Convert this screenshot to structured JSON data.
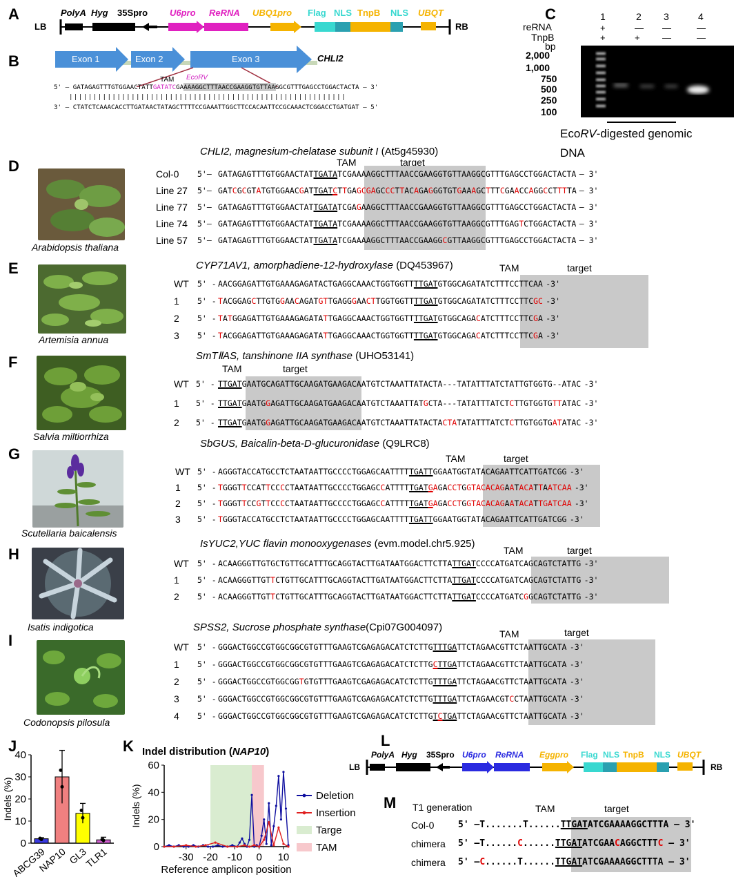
{
  "panel_letters": [
    "A",
    "B",
    "C",
    "D",
    "E",
    "F",
    "G",
    "H",
    "I",
    "J",
    "K",
    "L",
    "M"
  ],
  "panelA": {
    "lb": "LB",
    "rb": "RB",
    "labels": [
      "PolyA",
      "Hyg",
      "35Spro",
      "U6pro",
      "ReRNA",
      "UBQ1pro",
      "Flag",
      "NLS",
      "TnpB",
      "NLS",
      "UBQT"
    ],
    "colors": {
      "magenta": "#e020c0",
      "orange": "#f5b300",
      "cyan": "#38d8d0",
      "teal": "#2aa0b0",
      "black": "#000000"
    }
  },
  "panelB": {
    "exons": [
      "Exon 1",
      "Exon 2",
      "Exon 3"
    ],
    "gene": "CHLI2",
    "tam": "TAM",
    "ecorv": "EcoRV",
    "top_prefix": "5'",
    "top_seq_a": "– GATAGAGTTTGTGGAACTATT",
    "top_seq_b": "GATATC",
    "top_seq_c": "GAAAAGGCTTTAACCGAAGGTGTTAAGGCGTTTGAGCCTGGACTACTA",
    "top_suffix": "– 3'",
    "bars": "||||||||||||||||||||||||||||||||||||||||||||||||||||||||||",
    "bottom_prefix": "3'",
    "bottom_seq": "– CTATCTCAAACACCTTGATAACTATAGCTTTTCCGAAATTGGCTTCCACAATTCCGCAAACTCGGACCTGATGAT –",
    "bottom_suffix": "5'"
  },
  "panelC": {
    "lanes": [
      "1",
      "2",
      "3",
      "4"
    ],
    "rows": [
      {
        "name": "reRNA",
        "vals": [
          "+",
          "—",
          "—",
          "—"
        ]
      },
      {
        "name": "TnpB",
        "vals": [
          "+",
          "+",
          "—",
          "—"
        ]
      }
    ],
    "bp_label": "bp",
    "ladder": [
      "2,000",
      "1,000",
      "750",
      "500",
      "250",
      "100"
    ],
    "caption_a": "Eco",
    "caption_b": "RV",
    "caption_c": "-digested genomic",
    "caption_d": "DNA"
  },
  "panelD": {
    "title_gene": "CHLI2, magnesium-chelatase subunit I",
    "title_id": "(At5g45930)",
    "tam": "TAM",
    "target": "target",
    "species": "Arabidopsis thaliana",
    "rows": [
      {
        "name": "Col-0",
        "p": "5'–",
        "s": "GATAGAGTTTGTGGAACTATTGATATCGAAAAGGCTTTAACCGAAGGTGTTAAGGCGTTTGAGCCTGGACTACTA",
        "e": "– 3'"
      },
      {
        "name": "Line 27",
        "p": "5'–",
        "s": "GATCGCGTATGTGGAACGATTGATCTTGAGCGAGCCCTTACAGAGGGTGTGAAAGCTTTCGAACCAGGCCTTTTA",
        "e": "– 3'"
      },
      {
        "name": "Line 77",
        "p": "5'–",
        "s": "GATAGAGTTTGTGGAACTATTGATATCGAGAAGGCTTTAACCGAAGGTGTTAAGGCGTTTGAGCCTGGACTACTA",
        "e": "– 3'"
      },
      {
        "name": "Line 74",
        "p": "5'–",
        "s": "GATAGAGTTTGTGGAACTATTGATATCGAAAAGGCTTTAACCGAAGGTGTTAAGGCGTTTGAGTCTGGACTACTA",
        "e": "– 3'"
      },
      {
        "name": "Line 57",
        "p": "5'–",
        "s": "GATAGAGTTTGTGGAACTATTGATATCGAAAAGGCTTTAACCGAAGGCGTTAAGGCGTTTGAGCCTGGACTACTA",
        "e": "– 3'"
      }
    ]
  },
  "panelE": {
    "title_gene": "CYP71AV1, amorphadiene-12-hydroxylase",
    "title_id": "(DQ453967)",
    "tam": "TAM",
    "target": "target",
    "species": "Artemisia annua",
    "rows": [
      {
        "name": "WT",
        "p": "5' -",
        "s": "AACGGAGATTGTGAAAGAGATACTGAGGCAAACTGGTGGTTTTGATGTGGCAGATATCTTTCCTTCAA",
        "e": "-3'"
      },
      {
        "name": "1",
        "p": "5' -",
        "s": "TACGGAGCTTGTGGAACAGATGTTGAGGGAACTTGGTGGTTTTGATGTGGCAGATATCTTTCCTTCGC",
        "e": "-3'"
      },
      {
        "name": "2",
        "p": "5' -",
        "s": "TATGGAGATTGTGAAAGAGATATTGAGGCAAACTGGTGGTTTTGATGTGGCAGACATCTTTCCTTCGA",
        "e": "-3'"
      },
      {
        "name": "3",
        "p": "5' -",
        "s": "TACGGAGATTGTGAAAGAGATATTGAGGCAAACTGGTGGTTTTGATGTGGCAGACATCTTTCCTTCGA",
        "e": "-3'"
      }
    ]
  },
  "panelF": {
    "title_gene": "SmTⅡAS, tanshinone IIA synthase",
    "title_id": "(UHO53141)",
    "tam": "TAM",
    "target": "target",
    "species": "Salvia miltiorrhiza",
    "rows": [
      {
        "name": "WT",
        "p": "5' -",
        "s": "TTGATGAATGCAGATTGCAAGATGAAGACAATGTCTAAATTATACTA---TATATTTATCTATTGTGGTG--ATAC",
        "e": "-3'"
      },
      {
        "name": "1",
        "p": "5' -",
        "s": "TTGATGAATGGAGATTGCAAGATGAAGACAATGTCTAAATTATGCTA---TATATTTATCTCTTGTGGTGTTATAC",
        "e": "-3'"
      },
      {
        "name": "2",
        "p": "5' -",
        "s": "TTGATGAATGGAGATTGCAAGATGAAGACAATGTCTAAATTATACTACTATATATTTATCTCTTGTGGTGATATAC",
        "e": "-3'"
      }
    ]
  },
  "panelG": {
    "title_gene": "SbGUS, Baicalin-beta-D-glucuronidase",
    "title_id": "(Q9LRC8)",
    "tam": "TAM",
    "target": "target",
    "species": "Scutellaria baicalensis",
    "rows": [
      {
        "name": "WT",
        "p": "5' -",
        "s": "AGGGTACCATGCCTCTAATAATTGCCCCTGGAGCAATTTTTGATTGGAATGGTATACAGAATTCATTGATCGG",
        "e": "-3'"
      },
      {
        "name": "1",
        "p": "5' -",
        "s": "TGGGTTCCATTCCCCTAATAATTGCCCCTGGAGCCATTTTTGATGAGACCTGGTACACAGAATACATTAATCAA",
        "e": "-3'"
      },
      {
        "name": "2",
        "p": "5' -",
        "s": "TGGGTTCCGTTCCCCTAATAATTGCCCCTGGAGCCATTTTTGATGAGACCTGGTACACAGAATACATTGATCAA",
        "e": "-3'"
      },
      {
        "name": "3",
        "p": "5' -",
        "s": "TGGGTACCATGCCTCTAATAATTGCCCCTGGAGCAATTTTTGATTGGAATGGTATACAGAATTCATTGATCGG",
        "e": "-3'"
      }
    ]
  },
  "panelH": {
    "title_gene": "IsYUC2,YUC flavin monooxygenases",
    "title_id": "(evm.model.chr5.925)",
    "tam": "TAM",
    "target": "target",
    "species": "Isatis indigotica",
    "rows": [
      {
        "name": "WT",
        "p": "5' -",
        "s": "ACAAGGGTTGTGCTGTTGCATTTGCAGGTACTTGATAATGGACTTCTTATTGATCCCCATGATCAGCAGTCTATTG",
        "e": "-3'"
      },
      {
        "name": "1",
        "p": "5' -",
        "s": "ACAAGGGTTGTTCTGTTGCATTTGCAGGTACTTGATAATGGACTTCTTATTGATCCCCATGATCAGCAGTCTATTG",
        "e": "-3'"
      },
      {
        "name": "2",
        "p": "5' -",
        "s": "ACAAGGGTTGTTCTGTTGCATTTGCAGGTACTTGATAATGGACTTCTTATTGATCCCCATGATCGGCAGTCTATTG",
        "e": "-3'"
      }
    ]
  },
  "panelI": {
    "title_gene": "SPSS2, Sucrose phosphate synthase",
    "title_id": "(Cpi07G004097)",
    "tam": "TAM",
    "target": "target",
    "species": "Codonopsis pilosula",
    "rows": [
      {
        "name": "WT",
        "p": "5' -",
        "s": "GGGACTGGCCGTGGCGGCGTGTTTGAAGTCGAGAGACATCTCTTGTTTGATTCTAGAACGTTCTAATTGCATA",
        "e": "-3'"
      },
      {
        "name": "1",
        "p": "5' -",
        "s": "GGGACTGGCCGTGGCGGCGTGTTTGAAGTCGAGAGACATCTCTTGCTTGATTCTAGAACGTTCTAATTGCATA",
        "e": "-3'"
      },
      {
        "name": "2",
        "p": "5' -",
        "s": "GGGACTGGCCGTGGCGGTGTGTTTGAAGTCGAGAGACATCTCTTGTTTGATTCTAGAACGTTCTAATTGCATA",
        "e": "-3'"
      },
      {
        "name": "3",
        "p": "5' -",
        "s": "GGGACTGGCCGTGGCGGCGTGTTTGAAGTCGAGAGACATCTCTTGTTTGATTCTAGAACGTCCTAATTGCATA",
        "e": "-3'"
      },
      {
        "name": "4",
        "p": "5' -",
        "s": "GGGACTGGCCGTGGCGGCGTGTTTGAAGTCGAGAGACATCTCTTGTCTGATTCTAGAACGTTCTAATTGCATA",
        "e": "-3'"
      }
    ]
  },
  "panelJ": {
    "ylabel": "Indels (%)",
    "chart_data": {
      "type": "bar",
      "categories": [
        "ABCG39",
        "NAP10",
        "GL3",
        "TLR1"
      ],
      "values": [
        2,
        30,
        13.5,
        1.5
      ],
      "errors": [
        0.5,
        12,
        4.5,
        1.2
      ],
      "colors": [
        "#3a3ae0",
        "#f08080",
        "#ffff00",
        "#d060d0"
      ],
      "ylim": [
        0,
        40
      ],
      "yticks": [
        "0",
        "10",
        "20",
        "30",
        "40"
      ],
      "ylabel": "Indels (%)"
    }
  },
  "panelK": {
    "title_a": "Indel distribution (",
    "title_b": "NAP10",
    "title_c": ")",
    "ylabel": "Indels (%)",
    "xlabel": "Reference amplicon position",
    "chart_data": {
      "type": "line",
      "xlim": [
        -39,
        12
      ],
      "ylim": [
        0,
        60
      ],
      "xticks": [
        "-30",
        "-20",
        "-10",
        "0",
        "10"
      ],
      "yticks": [
        "0",
        "20",
        "40",
        "60"
      ],
      "target_region": [
        -20,
        -3
      ],
      "tam_region": [
        -3,
        2
      ],
      "series": [
        {
          "name": "Deletion",
          "color": "#1010a0",
          "x": [
            -39,
            -37,
            -35,
            -33,
            -31,
            -29,
            -27,
            -25,
            -23,
            -21,
            -19,
            -17,
            -15,
            -13,
            -11,
            -9,
            -8,
            -7,
            -6,
            -5,
            -4,
            -3,
            -2,
            -1,
            0,
            1,
            2,
            3,
            4,
            5,
            6,
            7,
            8,
            9,
            10,
            11,
            12
          ],
          "y": [
            0,
            1,
            0,
            1,
            0,
            0,
            1,
            0,
            1,
            0,
            0,
            1,
            0,
            0,
            1,
            0,
            3,
            6,
            2,
            0,
            5,
            38,
            0,
            1,
            0,
            8,
            20,
            2,
            32,
            1,
            15,
            30,
            52,
            20,
            55,
            28,
            1
          ]
        },
        {
          "name": "Insertion",
          "color": "#e02020",
          "x": [
            -39,
            -35,
            -30,
            -26,
            -22,
            -18,
            -13,
            -9,
            -6,
            -4,
            -2,
            0,
            2,
            4,
            6,
            8,
            10,
            12
          ],
          "y": [
            0,
            0,
            1,
            0,
            1,
            3,
            0,
            0,
            1,
            0,
            1,
            0,
            5,
            18,
            1,
            14,
            2,
            0
          ]
        }
      ],
      "legend": [
        "Deletion",
        "Insertion",
        "Targe",
        "TAM"
      ],
      "legend_colors": [
        "#1010a0",
        "#e02020",
        "#d9ecd0",
        "#f7c8cc"
      ]
    }
  },
  "panelL": {
    "lb": "LB",
    "rb": "RB",
    "labels": [
      "PolyA",
      "Hyg",
      "35Spro",
      "U6pro",
      "ReRNA",
      "Eggpro",
      "Flag",
      "NLS",
      "TnpB",
      "NLS",
      "UBQT"
    ]
  },
  "panelM": {
    "title": "T1 generation",
    "tam": "TAM",
    "target": "target",
    "rows": [
      {
        "name": "Col-0",
        "parts": [
          [
            "5' –T",
            "n"
          ],
          [
            ".......",
            "n"
          ],
          [
            "T",
            "n"
          ],
          [
            "......",
            "n"
          ],
          [
            "TTGAT",
            "u"
          ],
          [
            "ATCGAAAAGGCTTTA",
            "n"
          ],
          [
            " – 3'",
            "n"
          ]
        ]
      },
      {
        "name": "chimera",
        "parts": [
          [
            "5' –T",
            "n"
          ],
          [
            "......",
            "n"
          ],
          [
            "C",
            "r"
          ],
          [
            "......",
            "n"
          ],
          [
            "TTGAT",
            "u"
          ],
          [
            "ATCGAA",
            "n"
          ],
          [
            "C",
            "r"
          ],
          [
            "AGGCTTT",
            "n"
          ],
          [
            "C",
            "r"
          ],
          [
            " – 3'",
            "n"
          ]
        ]
      },
      {
        "name": "chimera",
        "parts": [
          [
            "5' –",
            "n"
          ],
          [
            "C",
            "r"
          ],
          [
            "......",
            "n"
          ],
          [
            "T",
            "n"
          ],
          [
            "......",
            "n"
          ],
          [
            "TTGAT",
            "u"
          ],
          [
            "ATCGAAAAGGCTTTA",
            "n"
          ],
          [
            " – 3'",
            "n"
          ]
        ]
      }
    ]
  }
}
